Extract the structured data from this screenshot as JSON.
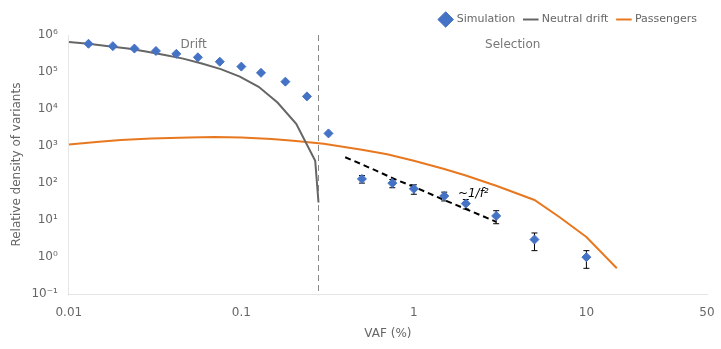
{
  "chart_data": {
    "type": "line",
    "xlabel": "VAF (%)",
    "ylabel": "Relative density of variants",
    "log": true,
    "grid": false,
    "legend": "upper right",
    "xlim": [
      0.01,
      50
    ],
    "xticks": [
      0.01,
      0.1,
      1,
      10,
      50
    ],
    "ylim": [
      0.1,
      1000000
    ],
    "yticks": [
      {
        "value": 0.1,
        "label": "10⁻¹"
      },
      {
        "value": 1,
        "label": "10⁰"
      },
      {
        "value": 10,
        "label": "10¹"
      },
      {
        "value": 100,
        "label": "10²"
      },
      {
        "value": 1000,
        "label": "10³"
      },
      {
        "value": 10000,
        "label": "10⁴"
      },
      {
        "value": 100000,
        "label": "10⁵"
      },
      {
        "value": 1000000,
        "label": "10⁶"
      }
    ],
    "series": [
      {
        "name": "Neutral drift",
        "color": "#666666",
        "x": [
          0.01,
          0.013,
          0.017,
          0.022,
          0.028,
          0.036,
          0.046,
          0.059,
          0.076,
          0.098,
          0.126,
          0.162,
          0.208,
          0.268,
          0.28
        ],
        "values": [
          650000,
          580000,
          500000,
          430000,
          360000,
          290000,
          230000,
          170000,
          120000,
          75000,
          40000,
          15000,
          4000,
          400,
          30
        ]
      },
      {
        "name": "Passengers",
        "color": "#E87820",
        "x": [
          0.01,
          0.015,
          0.02,
          0.03,
          0.05,
          0.07,
          0.1,
          0.15,
          0.2,
          0.3,
          0.5,
          0.7,
          1.0,
          1.5,
          2.0,
          3.0,
          5.0,
          7.0,
          10.0,
          15.0
        ],
        "values": [
          1100,
          1300,
          1450,
          1600,
          1700,
          1750,
          1700,
          1550,
          1400,
          1150,
          800,
          600,
          400,
          240,
          160,
          85,
          35,
          12,
          3.5,
          0.5
        ]
      },
      {
        "name": "Simulation",
        "type": "scatter",
        "marker": "diamond",
        "color": "#4472C4",
        "x": [
          0.013,
          0.018,
          0.024,
          0.032,
          0.042,
          0.056,
          0.075,
          0.1,
          0.13,
          0.18,
          0.24,
          0.32,
          0.5,
          0.75,
          1.0,
          1.5,
          2.0,
          3.0,
          5.0,
          10.0
        ],
        "values": [
          580000,
          500000,
          430000,
          370000,
          310000,
          250000,
          190000,
          140000,
          95000,
          55000,
          22000,
          2200,
          130,
          100,
          70,
          45,
          28,
          13,
          3.0,
          1.0
        ],
        "error_low": [
          0,
          0,
          0,
          0,
          0,
          0,
          0,
          0,
          0,
          0,
          0,
          0,
          30,
          25,
          20,
          12,
          8,
          5,
          1.5,
          0.5
        ],
        "error_high": [
          0,
          0,
          0,
          0,
          0,
          0,
          0,
          0,
          0,
          0,
          0,
          0,
          30,
          25,
          20,
          12,
          8,
          5,
          1.5,
          0.5
        ]
      },
      {
        "color": "black",
        "line_style": "dashed",
        "x": [
          0.4,
          0.5,
          0.6,
          0.8,
          1.0,
          1.5,
          2.0,
          3.0
        ],
        "values": [
          500,
          320,
          220,
          120,
          80,
          35,
          20,
          9
        ]
      }
    ],
    "vlines": [
      {
        "x": 0.28,
        "line_style": "dashed"
      }
    ],
    "annotations": [
      {
        "text": "~1/f²",
        "x": 1.8,
        "y": 35
      },
      {
        "text": "Drift"
      },
      {
        "text": "Selection"
      }
    ]
  }
}
